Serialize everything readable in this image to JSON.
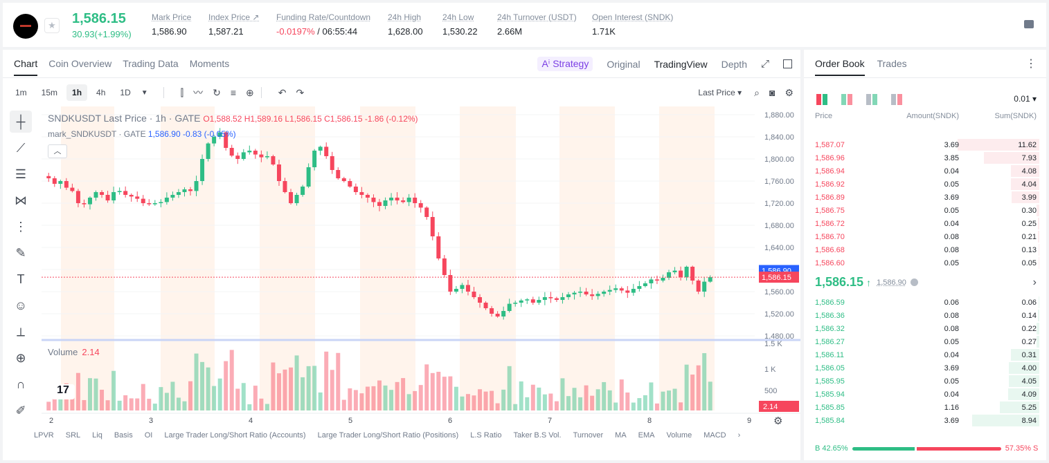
{
  "header": {
    "last_price": "1,586.15",
    "change": "30.93(+1.99%)",
    "stats": [
      {
        "label": "Mark Price",
        "value": "1,586.90"
      },
      {
        "label": "Index Price ↗",
        "value": "1,587.21"
      },
      {
        "label": "Funding Rate/Countdown",
        "value_neg": "-0.0197%",
        "value": " / 06:55:44"
      },
      {
        "label": "24h High",
        "value": "1,628.00"
      },
      {
        "label": "24h Low",
        "value": "1,530.22"
      },
      {
        "label": "24h Turnover (USDT)",
        "value": "2.66M"
      },
      {
        "label": "Open Interest (SNDK)",
        "value": "1.71K"
      }
    ]
  },
  "chart_tabs": [
    "Chart",
    "Coin Overview",
    "Trading Data",
    "Moments"
  ],
  "chart_views": {
    "strategy": "Strategy",
    "original": "Original",
    "tradingview": "TradingView",
    "depth": "Depth"
  },
  "timeframes": [
    "1m",
    "15m",
    "1h",
    "4h",
    "1D"
  ],
  "last_price_select": "Last Price",
  "legend": {
    "title": "SNDKUSDT Last Price · 1h · GATE",
    "ohlc": "O1,588.52  H1,589.16  L1,586.15  C1,586.15  -1.86  (-0.12%)",
    "mark_label": "mark_SNDKUSDT · GATE",
    "mark_values": "1,586.90  -0.83  (-0.05%)",
    "volume_label": "Volume",
    "volume_value": "2.14"
  },
  "indicators": [
    "LPVR",
    "SRL",
    "Liq",
    "Basis",
    "OI",
    "Large Trader Long/Short Ratio (Accounts)",
    "Large Trader Long/Short Ratio (Positions)",
    "L.S Ratio",
    "Taker B.S Vol.",
    "Turnover",
    "MA",
    "EMA",
    "Volume",
    "MACD"
  ],
  "colors": {
    "up": "#2ebd85",
    "down": "#f6465d",
    "mark_line": "#2962ff"
  },
  "chart_data": {
    "type": "candlestick",
    "symbol": "SNDKUSDT",
    "interval": "1h",
    "x_ticks": [
      "2",
      "3",
      "4",
      "5",
      "6",
      "7",
      "8",
      "9"
    ],
    "y_ticks": [
      "1,880.00",
      "1,840.00",
      "1,800.00",
      "1,760.00",
      "1,720.00",
      "1,680.00",
      "1,640.00",
      "1,600.00",
      "1,560.00",
      "1,520.00",
      "1,480.00"
    ],
    "ylim": [
      1480,
      1880
    ],
    "vol_ticks": [
      "1.5 K",
      "1 K",
      "500"
    ],
    "close_path": [
      1765,
      1755,
      1760,
      1748,
      1742,
      1720,
      1718,
      1730,
      1740,
      1735,
      1725,
      1740,
      1742,
      1735,
      1732,
      1728,
      1720,
      1718,
      1720,
      1722,
      1730,
      1735,
      1740,
      1745,
      1742,
      1760,
      1800,
      1828,
      1840,
      1848,
      1820,
      1806,
      1800,
      1812,
      1815,
      1808,
      1803,
      1805,
      1790,
      1760,
      1740,
      1720,
      1735,
      1750,
      1785,
      1815,
      1822,
      1805,
      1780,
      1765,
      1760,
      1750,
      1740,
      1735,
      1730,
      1722,
      1715,
      1725,
      1730,
      1725,
      1722,
      1730,
      1720,
      1712,
      1695,
      1660,
      1620,
      1590,
      1560,
      1565,
      1572,
      1560,
      1550,
      1540,
      1530,
      1520,
      1515,
      1525,
      1538,
      1540,
      1544,
      1546,
      1540,
      1545,
      1550,
      1548,
      1545,
      1550,
      1555,
      1558,
      1560,
      1555,
      1552,
      1556,
      1560,
      1563,
      1566,
      1562,
      1558,
      1565,
      1570,
      1575,
      1582,
      1580,
      1585,
      1595,
      1598,
      1586,
      1605,
      1580,
      1560,
      1578,
      1586.15
    ],
    "last_price_tag": "1,586.15",
    "mark_price_tag": "1,586.90",
    "volume_tag": "2.14"
  },
  "orderbook": {
    "tabs": [
      "Order Book",
      "Trades"
    ],
    "precision": "0.01 ▾",
    "headers": [
      "Price",
      "Amount(SNDK)",
      "Sum(SNDK)"
    ],
    "asks": [
      {
        "price": "1,587.07",
        "amount": "3.69",
        "sum": "11.62",
        "depth": 1.0
      },
      {
        "price": "1,586.96",
        "amount": "3.85",
        "sum": "7.93",
        "depth": 0.68
      },
      {
        "price": "1,586.94",
        "amount": "0.04",
        "sum": "4.08",
        "depth": 0.35
      },
      {
        "price": "1,586.92",
        "amount": "0.05",
        "sum": "4.04",
        "depth": 0.35
      },
      {
        "price": "1,586.89",
        "amount": "3.69",
        "sum": "3.99",
        "depth": 0.34
      },
      {
        "price": "1,586.75",
        "amount": "0.05",
        "sum": "0.30",
        "depth": 0.03
      },
      {
        "price": "1,586.72",
        "amount": "0.04",
        "sum": "0.25",
        "depth": 0.02
      },
      {
        "price": "1,586.70",
        "amount": "0.08",
        "sum": "0.21",
        "depth": 0.02
      },
      {
        "price": "1,586.68",
        "amount": "0.08",
        "sum": "0.13",
        "depth": 0.01
      },
      {
        "price": "1,586.60",
        "amount": "0.05",
        "sum": "0.05",
        "depth": 0.01
      }
    ],
    "mid_price": "1,586.15",
    "mid_arrow": "↑",
    "mid_mark": "1,586.90",
    "bids": [
      {
        "price": "1,586.59",
        "amount": "0.06",
        "sum": "0.06",
        "depth": 0.01
      },
      {
        "price": "1,586.36",
        "amount": "0.08",
        "sum": "0.14",
        "depth": 0.02
      },
      {
        "price": "1,586.32",
        "amount": "0.08",
        "sum": "0.22",
        "depth": 0.03
      },
      {
        "price": "1,586.27",
        "amount": "0.05",
        "sum": "0.27",
        "depth": 0.03
      },
      {
        "price": "1,586.11",
        "amount": "0.04",
        "sum": "0.31",
        "depth": 0.35
      },
      {
        "price": "1,586.05",
        "amount": "3.69",
        "sum": "4.00",
        "depth": 0.37
      },
      {
        "price": "1,585.95",
        "amount": "0.05",
        "sum": "4.05",
        "depth": 0.37
      },
      {
        "price": "1,585.94",
        "amount": "0.04",
        "sum": "4.09",
        "depth": 0.38
      },
      {
        "price": "1,585.85",
        "amount": "1.16",
        "sum": "5.25",
        "depth": 0.48
      },
      {
        "price": "1,585.84",
        "amount": "3.69",
        "sum": "8.94",
        "depth": 0.82
      }
    ],
    "buy_label": "B 42.65%",
    "sell_label": "57.35% S",
    "buy_ratio": 0.4265
  }
}
